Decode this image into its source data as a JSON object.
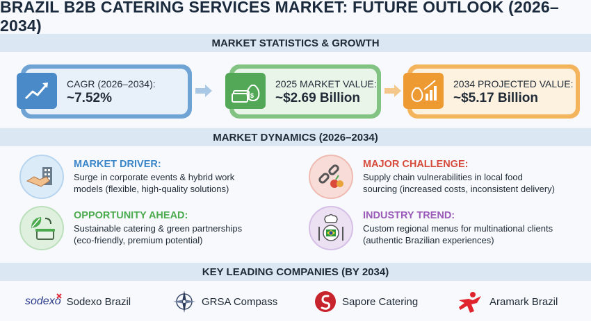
{
  "title": "BRAZIL B2B CATERING SERVICES MARKET: FUTURE OUTLOOK (2026–2034)",
  "sections": {
    "stats": "MARKET STATISTICS & GROWTH",
    "dynamics": "MARKET DYNAMICS (2026–2034)",
    "companies": "KEY LEADING COMPANIES (BY 2034)"
  },
  "stats": [
    {
      "label": "CAGR (2026–2034):",
      "value": "~7.52%",
      "icon": "trend-up-icon"
    },
    {
      "label": "2025 MARKET VALUE:",
      "value": "~$2.69 Billion",
      "icon": "money-bag-icon"
    },
    {
      "label": "2034 PROJECTED VALUE:",
      "value": "~$5.17 Billion",
      "icon": "growth-money-icon"
    }
  ],
  "dynamics": [
    {
      "heading": "MARKET DRIVER:",
      "line1": "Surge in corporate events & hybrid work",
      "line2": "models (flexible, high-quality solutions)",
      "color": "#3a86c8",
      "icon": "handshake-building-icon"
    },
    {
      "heading": "MAJOR CHALLENGE:",
      "line1": "Supply chain vulnerabilities in local food",
      "line2": "sourcing (increased costs, inconsistent delivery)",
      "color": "#d64a3a",
      "icon": "broken-chain-icon"
    },
    {
      "heading": "OPPORTUNITY AHEAD:",
      "line1": "Sustainable catering & green partnerships",
      "line2": "(eco-friendly, premium potential)",
      "color": "#4caa4f",
      "icon": "leaf-container-icon"
    },
    {
      "heading": "INDUSTRY TREND:",
      "line1": "Custom regional menus for multinational clients",
      "line2": "(authentic Brazilian experiences)",
      "color": "#9a5bb8",
      "icon": "chef-plate-icon"
    }
  ],
  "companies": [
    {
      "logo_text": "sodexo",
      "name": "Sodexo Brazil",
      "icon": "sodexo-logo"
    },
    {
      "name": "GRSA Compass",
      "icon": "compass-icon"
    },
    {
      "name": "Sapore Catering",
      "icon": "sapore-logo"
    },
    {
      "name": "Aramark Brazil",
      "icon": "aramark-logo"
    }
  ]
}
